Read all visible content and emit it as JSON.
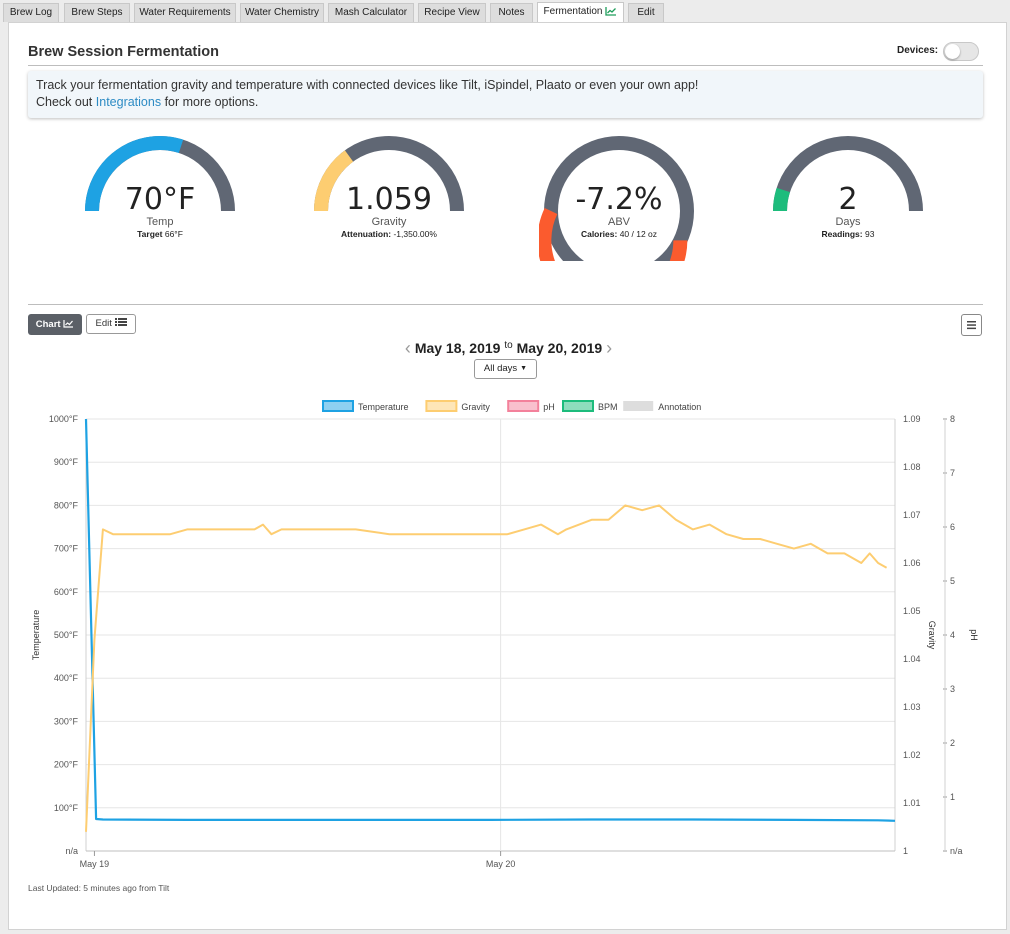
{
  "tabs": [
    {
      "label": "Brew Log",
      "active": false
    },
    {
      "label": "Brew Steps",
      "active": false
    },
    {
      "label": "Water Requirements",
      "active": false
    },
    {
      "label": "Water Chemistry",
      "active": false
    },
    {
      "label": "Mash Calculator",
      "active": false
    },
    {
      "label": "Recipe View",
      "active": false
    },
    {
      "label": "Notes",
      "active": false
    },
    {
      "label": "Fermentation",
      "active": true,
      "icon": "chart-icon"
    },
    {
      "label": "Edit",
      "active": false
    }
  ],
  "header": {
    "title": "Brew Session Fermentation",
    "devices_label": "Devices:",
    "devices_on": false
  },
  "info": {
    "line1": "Track your fermentation gravity and temperature with connected devices like Tilt, iSpindel, Plaato or even your own app!",
    "line2_pre": "Check out ",
    "link": "Integrations",
    "line2_post": " for more options."
  },
  "gauges": [
    {
      "value": "70°F",
      "label": "Temp",
      "sub_label": "Target",
      "sub_value": "66°F",
      "fill_fraction": 0.6,
      "color": "#1ea2e3"
    },
    {
      "value": "1.059",
      "label": "Gravity",
      "sub_label": "Attenuation:",
      "sub_value": "-1,350.00%",
      "fill_fraction": 0.3,
      "color": "#fdcd71"
    },
    {
      "value": "-7.2%",
      "label": "ABV",
      "sub_label": "Calories:",
      "sub_value": "40 / 12 oz",
      "fill_fraction": 0.55,
      "color": "#fb5b2e"
    },
    {
      "value": "2",
      "label": "Days",
      "sub_label": "Readings:",
      "sub_value": "93",
      "fill_fraction": 0.1,
      "color": "#1dbc7c"
    }
  ],
  "gauge_track_color": "#606774",
  "toolbar": {
    "chart_label": "Chart",
    "edit_label": "Edit",
    "date_from": "May 18, 2019",
    "date_to_word": "to",
    "date_to": "May 20, 2019",
    "range_select": "All days"
  },
  "chart_data": {
    "type": "line",
    "legend": [
      {
        "name": "Temperature",
        "color": "#1ea2e3"
      },
      {
        "name": "Gravity",
        "color": "#fdcd71"
      },
      {
        "name": "pH",
        "color": "#f3819b"
      },
      {
        "name": "BPM",
        "color": "#1dbc7c"
      },
      {
        "name": "Annotation",
        "color": "#dddddd"
      }
    ],
    "x_ticks": [
      "May 19",
      "May 20"
    ],
    "y_left": {
      "label": "Temperature",
      "ticks": [
        "n/a",
        "100°F",
        "200°F",
        "300°F",
        "400°F",
        "500°F",
        "600°F",
        "700°F",
        "800°F",
        "900°F",
        "1000°F"
      ],
      "range": [
        0,
        1000
      ]
    },
    "y_right1": {
      "label": "Gravity",
      "ticks": [
        "1",
        "1.01",
        "1.02",
        "1.03",
        "1.04",
        "1.05",
        "1.06",
        "1.07",
        "1.08",
        "1.09"
      ],
      "range": [
        1.0,
        1.09
      ]
    },
    "y_right2": {
      "label": "pH",
      "ticks": [
        "n/a",
        "1",
        "2",
        "3",
        "4",
        "5",
        "6",
        "7",
        "8"
      ],
      "range": [
        0,
        8
      ]
    },
    "x_range_hours": [
      0,
      48
    ],
    "series": [
      {
        "name": "Temperature",
        "axis": "left",
        "points": [
          [
            0,
            1000
          ],
          [
            0.6,
            74
          ],
          [
            1,
            73
          ],
          [
            6,
            72
          ],
          [
            12,
            72
          ],
          [
            18,
            72
          ],
          [
            24,
            72
          ],
          [
            30,
            73
          ],
          [
            36,
            73
          ],
          [
            42,
            72
          ],
          [
            47,
            71
          ],
          [
            48,
            70
          ]
        ]
      },
      {
        "name": "Gravity",
        "axis": "right1",
        "points": [
          [
            0,
            1.004
          ],
          [
            0.5,
            1.044
          ],
          [
            1,
            1.067
          ],
          [
            1.6,
            1.066
          ],
          [
            4,
            1.066
          ],
          [
            5,
            1.066
          ],
          [
            6,
            1.067
          ],
          [
            9,
            1.067
          ],
          [
            10,
            1.067
          ],
          [
            10.5,
            1.068
          ],
          [
            11,
            1.066
          ],
          [
            11.6,
            1.067
          ],
          [
            14,
            1.067
          ],
          [
            15,
            1.067
          ],
          [
            16,
            1.067
          ],
          [
            18,
            1.066
          ],
          [
            22,
            1.066
          ],
          [
            25,
            1.066
          ],
          [
            26,
            1.067
          ],
          [
            27,
            1.068
          ],
          [
            28,
            1.066
          ],
          [
            28.5,
            1.067
          ],
          [
            30,
            1.069
          ],
          [
            31,
            1.069
          ],
          [
            32,
            1.072
          ],
          [
            33,
            1.071
          ],
          [
            34,
            1.072
          ],
          [
            35,
            1.069
          ],
          [
            36,
            1.067
          ],
          [
            37,
            1.068
          ],
          [
            38,
            1.066
          ],
          [
            39,
            1.065
          ],
          [
            40,
            1.065
          ],
          [
            41,
            1.064
          ],
          [
            42,
            1.063
          ],
          [
            43,
            1.064
          ],
          [
            44,
            1.062
          ],
          [
            45,
            1.062
          ],
          [
            46,
            1.06
          ],
          [
            46.5,
            1.062
          ],
          [
            47,
            1.06
          ],
          [
            47.5,
            1.059
          ]
        ]
      }
    ]
  },
  "footer": {
    "updated": "Last Updated: 5 minutes ago from Tilt"
  }
}
